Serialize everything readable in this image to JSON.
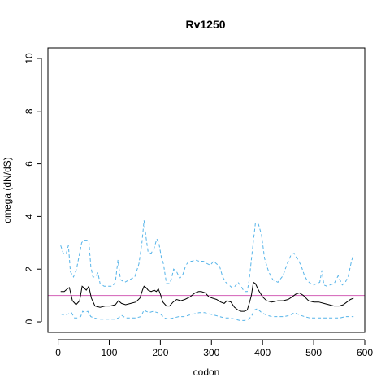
{
  "chart_data": {
    "type": "line",
    "title": "Rv1250",
    "xlabel": "codon",
    "ylabel": "omega (dN/dS)",
    "xlim": [
      -20,
      600
    ],
    "ylim": [
      -0.4,
      10.4
    ],
    "xticks": [
      "0",
      "100",
      "200",
      "300",
      "400",
      "500",
      "600"
    ],
    "yticks": [
      "0",
      "2",
      "4",
      "6",
      "8",
      "10"
    ],
    "reference_line": {
      "y": 1,
      "color": "#d35fb7"
    },
    "series": [
      {
        "role": "estimate",
        "color": "#000000",
        "dash": "solid",
        "x": [
          5,
          12,
          18,
          22,
          28,
          35,
          42,
          47,
          50,
          55,
          60,
          65,
          72,
          82,
          92,
          102,
          112,
          118,
          124,
          132,
          142,
          152,
          160,
          165,
          168,
          172,
          176,
          182,
          188,
          192,
          196,
          200,
          205,
          212,
          218,
          225,
          232,
          240,
          248,
          258,
          268,
          275,
          280,
          288,
          295,
          302,
          310,
          318,
          325,
          330,
          338,
          345,
          352,
          358,
          364,
          370,
          374,
          378,
          382,
          386,
          392,
          400,
          408,
          418,
          430,
          440,
          450,
          458,
          465,
          472,
          480,
          490,
          500,
          510,
          520,
          530,
          540,
          550,
          558,
          565,
          572,
          578
        ],
        "y": [
          1.15,
          1.15,
          1.25,
          1.3,
          0.8,
          0.65,
          0.8,
          1.35,
          1.3,
          1.2,
          1.35,
          0.9,
          0.6,
          0.55,
          0.6,
          0.6,
          0.65,
          0.8,
          0.7,
          0.65,
          0.7,
          0.75,
          0.9,
          1.2,
          1.35,
          1.3,
          1.2,
          1.15,
          1.2,
          1.15,
          1.25,
          1.05,
          0.75,
          0.6,
          0.6,
          0.75,
          0.85,
          0.8,
          0.85,
          0.95,
          1.1,
          1.15,
          1.15,
          1.1,
          0.95,
          0.9,
          0.85,
          0.75,
          0.7,
          0.8,
          0.75,
          0.55,
          0.45,
          0.4,
          0.4,
          0.45,
          0.7,
          1.0,
          1.5,
          1.45,
          1.2,
          0.95,
          0.8,
          0.75,
          0.8,
          0.8,
          0.85,
          0.95,
          1.05,
          1.1,
          1.0,
          0.8,
          0.75,
          0.75,
          0.7,
          0.65,
          0.6,
          0.6,
          0.65,
          0.75,
          0.85,
          0.9
        ]
      },
      {
        "role": "upper bound",
        "color": "#56b4e9",
        "dash": "dashed",
        "x": [
          5,
          10,
          16,
          20,
          24,
          30,
          36,
          42,
          46,
          50,
          55,
          60,
          64,
          68,
          72,
          78,
          82,
          90,
          98,
          106,
          112,
          117,
          122,
          130,
          140,
          150,
          158,
          164,
          168,
          172,
          176,
          182,
          188,
          193,
          197,
          202,
          206,
          212,
          218,
          222,
          226,
          232,
          238,
          244,
          250,
          256,
          262,
          268,
          276,
          284,
          292,
          298,
          304,
          310,
          316,
          322,
          328,
          334,
          340,
          346,
          352,
          358,
          364,
          370,
          374,
          380,
          386,
          392,
          398,
          404,
          412,
          420,
          430,
          440,
          448,
          456,
          462,
          466,
          470,
          476,
          482,
          488,
          494,
          500,
          506,
          512,
          516,
          520,
          526,
          532,
          540,
          548,
          556,
          562,
          568,
          574,
          578
        ],
        "y": [
          2.9,
          2.6,
          2.6,
          2.9,
          1.9,
          1.7,
          2.0,
          2.6,
          3.0,
          3.1,
          3.1,
          3.1,
          2.1,
          1.7,
          1.7,
          1.85,
          1.45,
          1.35,
          1.35,
          1.35,
          1.5,
          2.35,
          1.6,
          1.5,
          1.6,
          1.7,
          2.2,
          3.0,
          3.85,
          3.2,
          2.65,
          2.6,
          2.8,
          3.15,
          3.0,
          2.45,
          2.2,
          1.45,
          1.45,
          1.65,
          2.0,
          1.9,
          1.65,
          1.8,
          2.15,
          2.3,
          2.3,
          2.35,
          2.3,
          2.3,
          2.2,
          2.15,
          2.3,
          2.2,
          2.1,
          1.7,
          1.5,
          1.4,
          1.3,
          1.35,
          1.5,
          1.35,
          1.15,
          1.15,
          1.6,
          2.7,
          3.75,
          3.7,
          3.3,
          2.4,
          1.9,
          1.6,
          1.5,
          1.75,
          2.2,
          2.55,
          2.6,
          2.45,
          2.35,
          2.1,
          1.75,
          1.55,
          1.45,
          1.4,
          1.45,
          1.5,
          1.95,
          1.4,
          1.35,
          1.4,
          1.45,
          1.75,
          1.4,
          1.5,
          1.75,
          2.3,
          2.55
        ]
      },
      {
        "role": "lower bound",
        "color": "#56b4e9",
        "dash": "dashed",
        "x": [
          5,
          12,
          20,
          26,
          32,
          38,
          44,
          48,
          52,
          58,
          64,
          70,
          80,
          90,
          100,
          110,
          118,
          124,
          132,
          142,
          152,
          162,
          168,
          172,
          178,
          186,
          194,
          200,
          208,
          216,
          226,
          236,
          246,
          256,
          266,
          276,
          286,
          296,
          306,
          316,
          326,
          336,
          346,
          356,
          364,
          372,
          378,
          384,
          390,
          398,
          408,
          418,
          430,
          442,
          454,
          462,
          468,
          474,
          482,
          492,
          502,
          512,
          522,
          532,
          542,
          552,
          562,
          570,
          578
        ],
        "y": [
          0.3,
          0.25,
          0.3,
          0.35,
          0.15,
          0.15,
          0.2,
          0.4,
          0.35,
          0.4,
          0.2,
          0.15,
          0.1,
          0.1,
          0.1,
          0.1,
          0.15,
          0.25,
          0.15,
          0.15,
          0.15,
          0.2,
          0.45,
          0.4,
          0.35,
          0.4,
          0.35,
          0.3,
          0.15,
          0.1,
          0.15,
          0.2,
          0.2,
          0.25,
          0.3,
          0.35,
          0.35,
          0.3,
          0.25,
          0.2,
          0.15,
          0.15,
          0.1,
          0.05,
          0.05,
          0.1,
          0.2,
          0.45,
          0.5,
          0.35,
          0.25,
          0.2,
          0.2,
          0.2,
          0.25,
          0.35,
          0.3,
          0.25,
          0.2,
          0.15,
          0.15,
          0.15,
          0.15,
          0.15,
          0.15,
          0.15,
          0.2,
          0.2,
          0.2
        ]
      }
    ]
  }
}
